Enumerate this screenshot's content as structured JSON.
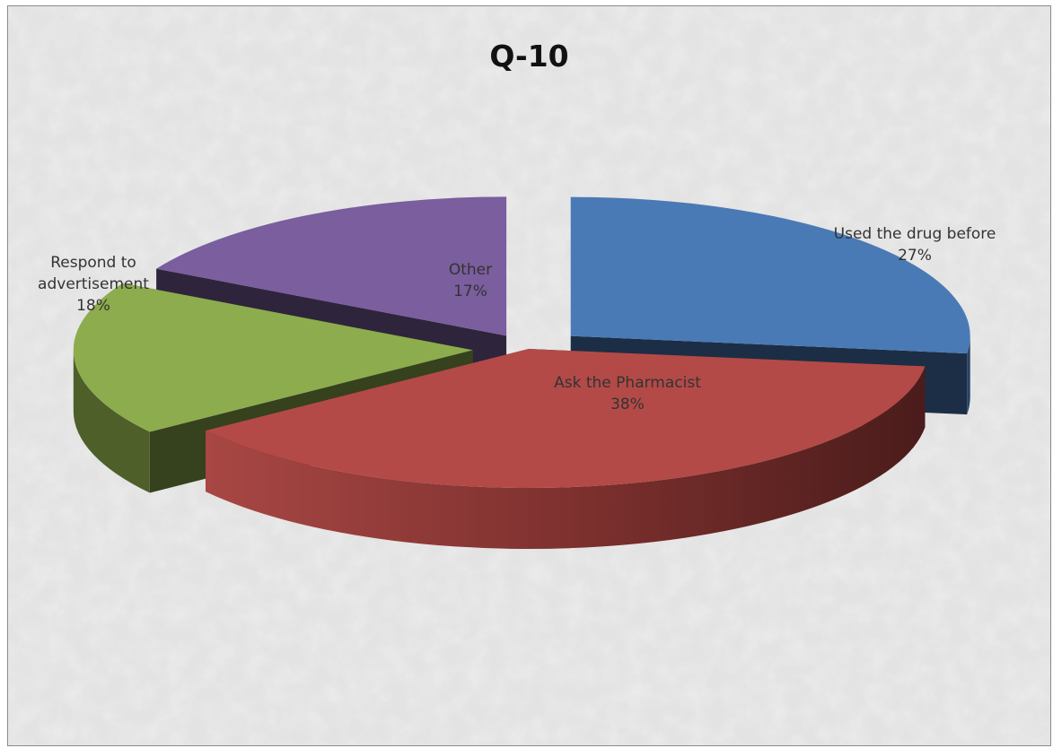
{
  "chart_data": {
    "type": "pie",
    "title": "Q-10",
    "slices": [
      {
        "label": "Used the drug before",
        "value": 27,
        "value_label": "27%",
        "color": "#4a7ab5"
      },
      {
        "label": "Ask the Pharmacist",
        "value": 38,
        "value_label": "38%",
        "color": "#b34a47"
      },
      {
        "label": "Respond to advertisement",
        "label_lines": [
          "Respond to",
          "advertisement"
        ],
        "value": 18,
        "value_label": "18%",
        "color": "#8dac4d"
      },
      {
        "label": "Other",
        "value": 17,
        "value_label": "17%",
        "color": "#7a5e9e"
      }
    ],
    "legend": "none",
    "style": "3d-exploded"
  }
}
